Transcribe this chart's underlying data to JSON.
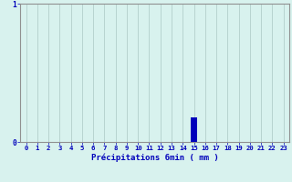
{
  "hours": [
    0,
    1,
    2,
    3,
    4,
    5,
    6,
    7,
    8,
    9,
    10,
    11,
    12,
    13,
    14,
    15,
    16,
    17,
    18,
    19,
    20,
    21,
    22,
    23
  ],
  "values": [
    0,
    0,
    0,
    0,
    0,
    0,
    0,
    0,
    0,
    0,
    0,
    0,
    0,
    0,
    0,
    0.18,
    0,
    0,
    0,
    0,
    0,
    0,
    0,
    0
  ],
  "xlabel": "Précipitations 6min ( mm )",
  "ylim": [
    0,
    1
  ],
  "yticks": [
    0,
    1
  ],
  "background_color": "#d8f2ee",
  "bar_color": "#0000bb",
  "grid_color": "#b8d4d0",
  "text_color": "#0000bb",
  "axis_color": "#909090",
  "xlabel_fontsize": 6.5,
  "tick_fontsize": 5.2
}
